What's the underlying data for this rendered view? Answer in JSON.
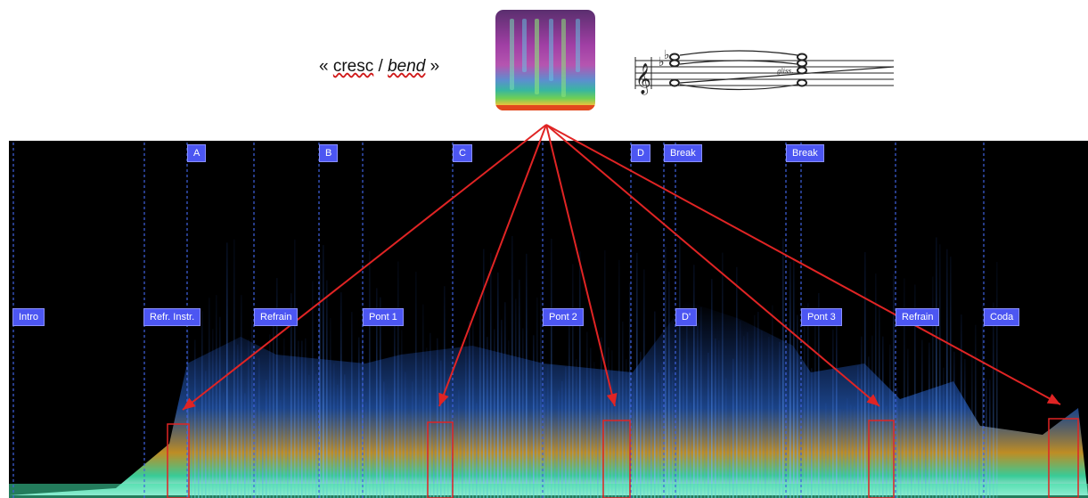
{
  "caption": {
    "open_quote": "« ",
    "cresc": "cresc",
    "slash": " / ",
    "bend": "bend",
    "close_quote": " »"
  },
  "score": {
    "gliss_text": "gliss."
  },
  "top_labels": [
    "A",
    "B",
    "C",
    "D",
    "Break",
    "Break"
  ],
  "section_labels": [
    "Intro",
    "Refr. Instr.",
    "Refrain",
    "Pont 1",
    "Pont 2",
    "D'",
    "Pont 3",
    "Refrain",
    "Coda"
  ],
  "colors": {
    "label_bg": "#4c56f2",
    "arrow": "#e02424",
    "background": "#000000"
  }
}
